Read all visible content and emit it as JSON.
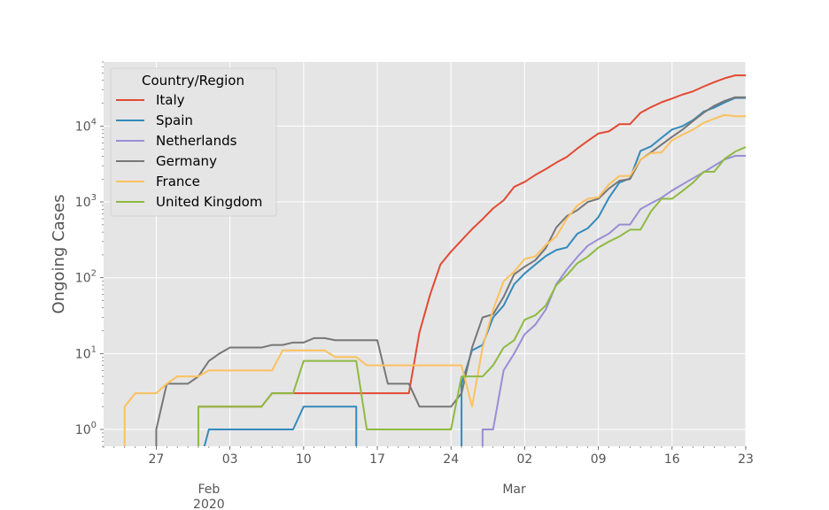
{
  "chart_data": {
    "type": "line",
    "ylabel": "Ongoing Cases",
    "yscale": "log",
    "ylim": [
      0.6,
      70000
    ],
    "xlim": [
      "2020-01-22",
      "2020-03-23"
    ],
    "grid": true,
    "background": "#e5e5e5",
    "legend": {
      "title": "Country/Region",
      "placement": "top-left"
    },
    "x_ticks": [
      {
        "date": "2020-01-27",
        "label": "27"
      },
      {
        "date": "2020-02-03",
        "label": "03"
      },
      {
        "date": "2020-02-10",
        "label": "10"
      },
      {
        "date": "2020-02-17",
        "label": "17"
      },
      {
        "date": "2020-02-24",
        "label": "24"
      },
      {
        "date": "2020-03-02",
        "label": "02"
      },
      {
        "date": "2020-03-09",
        "label": "09"
      },
      {
        "date": "2020-03-16",
        "label": "16"
      },
      {
        "date": "2020-03-23",
        "label": "23"
      }
    ],
    "x_major_labels": [
      {
        "date": "2020-02-01",
        "label": "Feb",
        "sub": "2020"
      },
      {
        "date": "2020-03-01",
        "label": "Mar",
        "sub": ""
      }
    ],
    "y_ticks": [
      {
        "value": 1,
        "base": "10",
        "exp": "0"
      },
      {
        "value": 10,
        "base": "10",
        "exp": "1"
      },
      {
        "value": 100,
        "base": "10",
        "exp": "2"
      },
      {
        "value": 1000,
        "base": "10",
        "exp": "3"
      },
      {
        "value": 10000,
        "base": "10",
        "exp": "4"
      }
    ],
    "series": [
      {
        "name": "Italy",
        "color": "#e24a33",
        "points": [
          [
            "2020-01-31",
            2
          ],
          [
            "2020-02-06",
            2
          ],
          [
            "2020-02-07",
            3
          ],
          [
            "2020-02-20",
            3
          ],
          [
            "2020-02-21",
            19
          ],
          [
            "2020-02-22",
            59
          ],
          [
            "2020-02-23",
            150
          ],
          [
            "2020-02-24",
            221
          ],
          [
            "2020-02-25",
            311
          ],
          [
            "2020-02-26",
            438
          ],
          [
            "2020-02-27",
            593
          ],
          [
            "2020-02-28",
            821
          ],
          [
            "2020-02-29",
            1049
          ],
          [
            "2020-03-01",
            1577
          ],
          [
            "2020-03-02",
            1835
          ],
          [
            "2020-03-03",
            2263
          ],
          [
            "2020-03-04",
            2706
          ],
          [
            "2020-03-05",
            3296
          ],
          [
            "2020-03-06",
            3916
          ],
          [
            "2020-03-07",
            5061
          ],
          [
            "2020-03-08",
            6387
          ],
          [
            "2020-03-09",
            7985
          ],
          [
            "2020-03-10",
            8514
          ],
          [
            "2020-03-11",
            10590
          ],
          [
            "2020-03-12",
            10590
          ],
          [
            "2020-03-13",
            14955
          ],
          [
            "2020-03-14",
            17750
          ],
          [
            "2020-03-15",
            20603
          ],
          [
            "2020-03-16",
            23073
          ],
          [
            "2020-03-17",
            26062
          ],
          [
            "2020-03-18",
            28710
          ],
          [
            "2020-03-19",
            33190
          ],
          [
            "2020-03-20",
            37860
          ],
          [
            "2020-03-21",
            42681
          ],
          [
            "2020-03-22",
            46638
          ],
          [
            "2020-03-23",
            46638
          ]
        ]
      },
      {
        "name": "Spain",
        "color": "#348abd",
        "points": [
          [
            "2020-01-31",
            0.3
          ],
          [
            "2020-02-01",
            1
          ],
          [
            "2020-02-09",
            1
          ],
          [
            "2020-02-10",
            2
          ],
          [
            "2020-02-15",
            2
          ],
          [
            "2020-02-15",
            0.3
          ],
          [
            "2020-02-25",
            0.3
          ],
          [
            "2020-02-25",
            4
          ],
          [
            "2020-02-26",
            11
          ],
          [
            "2020-02-27",
            13
          ],
          [
            "2020-02-28",
            30
          ],
          [
            "2020-02-29",
            43
          ],
          [
            "2020-03-01",
            82
          ],
          [
            "2020-03-02",
            114
          ],
          [
            "2020-03-03",
            149
          ],
          [
            "2020-03-04",
            193
          ],
          [
            "2020-03-05",
            232
          ],
          [
            "2020-03-06",
            251
          ],
          [
            "2020-03-07",
            380
          ],
          [
            "2020-03-08",
            450
          ],
          [
            "2020-03-09",
            629
          ],
          [
            "2020-03-10",
            1130
          ],
          [
            "2020-03-11",
            1800
          ],
          [
            "2020-03-12",
            2036
          ],
          [
            "2020-03-13",
            4700
          ],
          [
            "2020-03-14",
            5400
          ],
          [
            "2020-03-15",
            7000
          ],
          [
            "2020-03-16",
            9000
          ],
          [
            "2020-03-17",
            10000
          ],
          [
            "2020-03-18",
            12000
          ],
          [
            "2020-03-19",
            15500
          ],
          [
            "2020-03-20",
            17500
          ],
          [
            "2020-03-21",
            20500
          ],
          [
            "2020-03-22",
            23500
          ],
          [
            "2020-03-23",
            23500
          ]
        ]
      },
      {
        "name": "Netherlands",
        "color": "#988ed5",
        "points": [
          [
            "2020-02-27",
            0.3
          ],
          [
            "2020-02-27",
            1
          ],
          [
            "2020-02-28",
            1
          ],
          [
            "2020-02-29",
            6
          ],
          [
            "2020-03-01",
            10
          ],
          [
            "2020-03-02",
            18
          ],
          [
            "2020-03-03",
            24
          ],
          [
            "2020-03-04",
            38
          ],
          [
            "2020-03-05",
            82
          ],
          [
            "2020-03-06",
            128
          ],
          [
            "2020-03-07",
            188
          ],
          [
            "2020-03-08",
            265
          ],
          [
            "2020-03-09",
            321
          ],
          [
            "2020-03-10",
            382
          ],
          [
            "2020-03-11",
            503
          ],
          [
            "2020-03-12",
            503
          ],
          [
            "2020-03-13",
            804
          ],
          [
            "2020-03-14",
            959
          ],
          [
            "2020-03-15",
            1135
          ],
          [
            "2020-03-16",
            1413
          ],
          [
            "2020-03-17",
            1705
          ],
          [
            "2020-03-18",
            2051
          ],
          [
            "2020-03-19",
            2460
          ],
          [
            "2020-03-20",
            2994
          ],
          [
            "2020-03-21",
            3631
          ],
          [
            "2020-03-22",
            4050
          ],
          [
            "2020-03-23",
            4050
          ]
        ]
      },
      {
        "name": "Germany",
        "color": "#777777",
        "points": [
          [
            "2020-01-27",
            0.3
          ],
          [
            "2020-01-27",
            1
          ],
          [
            "2020-01-28",
            4
          ],
          [
            "2020-01-30",
            4
          ],
          [
            "2020-01-31",
            5
          ],
          [
            "2020-02-01",
            8
          ],
          [
            "2020-02-02",
            10
          ],
          [
            "2020-02-03",
            12
          ],
          [
            "2020-02-06",
            12
          ],
          [
            "2020-02-07",
            13
          ],
          [
            "2020-02-08",
            13
          ],
          [
            "2020-02-09",
            14
          ],
          [
            "2020-02-10",
            14
          ],
          [
            "2020-02-11",
            16
          ],
          [
            "2020-02-12",
            16
          ],
          [
            "2020-02-13",
            15
          ],
          [
            "2020-02-17",
            15
          ],
          [
            "2020-02-18",
            4
          ],
          [
            "2020-02-20",
            4
          ],
          [
            "2020-02-21",
            2
          ],
          [
            "2020-02-24",
            2
          ],
          [
            "2020-02-25",
            3
          ],
          [
            "2020-02-26",
            12
          ],
          [
            "2020-02-27",
            30
          ],
          [
            "2020-02-28",
            33
          ],
          [
            "2020-02-29",
            56
          ],
          [
            "2020-03-01",
            111
          ],
          [
            "2020-03-02",
            140
          ],
          [
            "2020-03-03",
            170
          ],
          [
            "2020-03-04",
            246
          ],
          [
            "2020-03-05",
            460
          ],
          [
            "2020-03-06",
            650
          ],
          [
            "2020-03-07",
            778
          ],
          [
            "2020-03-08",
            1000
          ],
          [
            "2020-03-09",
            1100
          ],
          [
            "2020-03-10",
            1500
          ],
          [
            "2020-03-11",
            1900
          ],
          [
            "2020-03-12",
            2000
          ],
          [
            "2020-03-13",
            3600
          ],
          [
            "2020-03-14",
            4500
          ],
          [
            "2020-03-15",
            5700
          ],
          [
            "2020-03-16",
            7200
          ],
          [
            "2020-03-17",
            9000
          ],
          [
            "2020-03-18",
            11700
          ],
          [
            "2020-03-19",
            15000
          ],
          [
            "2020-03-20",
            18500
          ],
          [
            "2020-03-21",
            21500
          ],
          [
            "2020-03-22",
            24000
          ],
          [
            "2020-03-23",
            24000
          ]
        ]
      },
      {
        "name": "France",
        "color": "#fbc15e",
        "points": [
          [
            "2020-01-24",
            0.3
          ],
          [
            "2020-01-24",
            2
          ],
          [
            "2020-01-25",
            3
          ],
          [
            "2020-01-27",
            3
          ],
          [
            "2020-01-28",
            4
          ],
          [
            "2020-01-29",
            5
          ],
          [
            "2020-01-31",
            5
          ],
          [
            "2020-02-01",
            6
          ],
          [
            "2020-02-07",
            6
          ],
          [
            "2020-02-08",
            11
          ],
          [
            "2020-02-12",
            11
          ],
          [
            "2020-02-13",
            9
          ],
          [
            "2020-02-15",
            9
          ],
          [
            "2020-02-16",
            7
          ],
          [
            "2020-02-25",
            7
          ],
          [
            "2020-02-26",
            2
          ],
          [
            "2020-02-27",
            12
          ],
          [
            "2020-02-28",
            38
          ],
          [
            "2020-02-29",
            90
          ],
          [
            "2020-03-01",
            120
          ],
          [
            "2020-03-02",
            177
          ],
          [
            "2020-03-03",
            191
          ],
          [
            "2020-03-04",
            270
          ],
          [
            "2020-03-05",
            350
          ],
          [
            "2020-03-06",
            600
          ],
          [
            "2020-03-07",
            900
          ],
          [
            "2020-03-08",
            1100
          ],
          [
            "2020-03-09",
            1150
          ],
          [
            "2020-03-10",
            1700
          ],
          [
            "2020-03-11",
            2200
          ],
          [
            "2020-03-12",
            2200
          ],
          [
            "2020-03-13",
            3600
          ],
          [
            "2020-03-14",
            4400
          ],
          [
            "2020-03-15",
            4500
          ],
          [
            "2020-03-16",
            6500
          ],
          [
            "2020-03-17",
            7700
          ],
          [
            "2020-03-18",
            9000
          ],
          [
            "2020-03-19",
            11000
          ],
          [
            "2020-03-20",
            12500
          ],
          [
            "2020-03-21",
            14000
          ],
          [
            "2020-03-22",
            13500
          ],
          [
            "2020-03-23",
            13500
          ]
        ]
      },
      {
        "name": "United Kingdom",
        "color": "#8eba42",
        "points": [
          [
            "2020-01-31",
            0.3
          ],
          [
            "2020-01-31",
            2
          ],
          [
            "2020-02-06",
            2
          ],
          [
            "2020-02-07",
            3
          ],
          [
            "2020-02-09",
            3
          ],
          [
            "2020-02-10",
            8
          ],
          [
            "2020-02-15",
            8
          ],
          [
            "2020-02-16",
            1
          ],
          [
            "2020-02-24",
            1
          ],
          [
            "2020-02-25",
            5
          ],
          [
            "2020-02-27",
            5
          ],
          [
            "2020-02-28",
            7
          ],
          [
            "2020-02-29",
            12
          ],
          [
            "2020-03-01",
            15
          ],
          [
            "2020-03-02",
            28
          ],
          [
            "2020-03-03",
            32
          ],
          [
            "2020-03-04",
            43
          ],
          [
            "2020-03-05",
            80
          ],
          [
            "2020-03-06",
            108
          ],
          [
            "2020-03-07",
            155
          ],
          [
            "2020-03-08",
            190
          ],
          [
            "2020-03-09",
            250
          ],
          [
            "2020-03-10",
            300
          ],
          [
            "2020-03-11",
            350
          ],
          [
            "2020-03-12",
            430
          ],
          [
            "2020-03-13",
            430
          ],
          [
            "2020-03-14",
            750
          ],
          [
            "2020-03-15",
            1100
          ],
          [
            "2020-03-16",
            1100
          ],
          [
            "2020-03-17",
            1400
          ],
          [
            "2020-03-18",
            1800
          ],
          [
            "2020-03-19",
            2500
          ],
          [
            "2020-03-20",
            2500
          ],
          [
            "2020-03-21",
            3700
          ],
          [
            "2020-03-22",
            4600
          ],
          [
            "2020-03-23",
            5300
          ]
        ]
      }
    ]
  }
}
